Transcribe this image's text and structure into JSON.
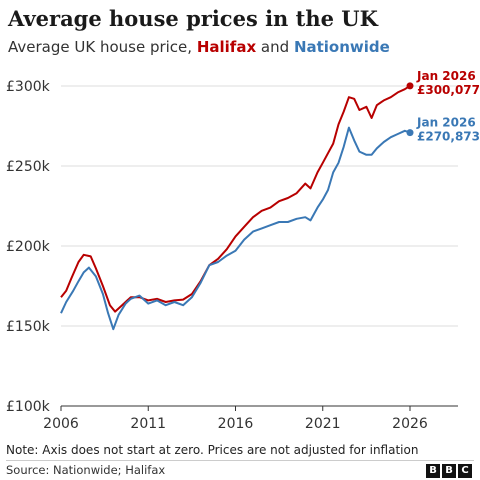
{
  "title": "Average house prices in the UK",
  "subtitle": {
    "prefix": "Average UK house price,",
    "halifax": "Halifax",
    "and": "and",
    "nationwide": "Nationwide"
  },
  "note": "Note: Axis does not start at zero. Prices are not adjusted for inflation",
  "source": "Source: Nationwide; Halifax",
  "logo": [
    "B",
    "B",
    "C"
  ],
  "colors": {
    "halifax": "#b80000",
    "nationwide": "#3a78b5",
    "grid": "#dddddd",
    "axis": "#333333"
  },
  "chart_data": {
    "type": "line",
    "title": "Average house prices in the UK",
    "ylim": [
      100000,
      310000
    ],
    "xlim": [
      2006,
      2026
    ],
    "yticks": [
      100000,
      150000,
      200000,
      250000,
      300000
    ],
    "ytick_labels": [
      "£100k",
      "£150k",
      "£200k",
      "£250k",
      "£300k"
    ],
    "xticks": [
      2006,
      2011,
      2016,
      2021,
      2026
    ],
    "xtick_labels": [
      "2006",
      "2011",
      "2016",
      "2021",
      "2026"
    ],
    "grid": true,
    "series": [
      {
        "name": "Halifax",
        "color": "#b80000",
        "end_label_date": "Jan 2026",
        "end_label_value": "£300,077",
        "points": [
          [
            2006.0,
            168000
          ],
          [
            2006.3,
            172000
          ],
          [
            2006.6,
            180000
          ],
          [
            2007.0,
            190000
          ],
          [
            2007.3,
            194500
          ],
          [
            2007.7,
            193500
          ],
          [
            2008.0,
            186000
          ],
          [
            2008.4,
            175000
          ],
          [
            2008.8,
            163000
          ],
          [
            2009.1,
            159000
          ],
          [
            2009.5,
            163000
          ],
          [
            2010.0,
            168000
          ],
          [
            2010.5,
            168000
          ],
          [
            2011.0,
            166000
          ],
          [
            2011.5,
            167000
          ],
          [
            2012.0,
            165000
          ],
          [
            2012.5,
            166000
          ],
          [
            2013.0,
            166500
          ],
          [
            2013.5,
            170000
          ],
          [
            2014.0,
            178000
          ],
          [
            2014.5,
            188000
          ],
          [
            2015.0,
            192000
          ],
          [
            2015.5,
            198000
          ],
          [
            2016.0,
            206000
          ],
          [
            2016.5,
            212000
          ],
          [
            2017.0,
            218000
          ],
          [
            2017.5,
            222000
          ],
          [
            2018.0,
            224000
          ],
          [
            2018.5,
            228000
          ],
          [
            2019.0,
            230000
          ],
          [
            2019.5,
            233000
          ],
          [
            2020.0,
            239000
          ],
          [
            2020.3,
            236000
          ],
          [
            2020.7,
            246000
          ],
          [
            2021.0,
            252000
          ],
          [
            2021.3,
            258000
          ],
          [
            2021.6,
            264000
          ],
          [
            2021.9,
            276000
          ],
          [
            2022.2,
            284000
          ],
          [
            2022.5,
            293000
          ],
          [
            2022.8,
            292000
          ],
          [
            2023.1,
            285000
          ],
          [
            2023.5,
            287000
          ],
          [
            2023.8,
            280000
          ],
          [
            2024.1,
            288000
          ],
          [
            2024.5,
            291000
          ],
          [
            2024.9,
            293000
          ],
          [
            2025.3,
            296000
          ],
          [
            2025.7,
            298000
          ],
          [
            2026.0,
            300077
          ]
        ]
      },
      {
        "name": "Nationwide",
        "color": "#3a78b5",
        "end_label_date": "Jan 2026",
        "end_label_value": "£270,873",
        "points": [
          [
            2006.0,
            158000
          ],
          [
            2006.3,
            165000
          ],
          [
            2006.7,
            172000
          ],
          [
            2007.0,
            178000
          ],
          [
            2007.3,
            183500
          ],
          [
            2007.6,
            186500
          ],
          [
            2008.0,
            181000
          ],
          [
            2008.4,
            170000
          ],
          [
            2008.7,
            158000
          ],
          [
            2009.0,
            148000
          ],
          [
            2009.3,
            157000
          ],
          [
            2009.7,
            164000
          ],
          [
            2010.0,
            167000
          ],
          [
            2010.5,
            169000
          ],
          [
            2011.0,
            164000
          ],
          [
            2011.5,
            166000
          ],
          [
            2012.0,
            163000
          ],
          [
            2012.5,
            165000
          ],
          [
            2013.0,
            163000
          ],
          [
            2013.5,
            168000
          ],
          [
            2014.0,
            177000
          ],
          [
            2014.5,
            188000
          ],
          [
            2015.0,
            190000
          ],
          [
            2015.5,
            194000
          ],
          [
            2016.0,
            197000
          ],
          [
            2016.5,
            204000
          ],
          [
            2017.0,
            209000
          ],
          [
            2017.5,
            211000
          ],
          [
            2018.0,
            213000
          ],
          [
            2018.5,
            215000
          ],
          [
            2019.0,
            215000
          ],
          [
            2019.5,
            217000
          ],
          [
            2020.0,
            218000
          ],
          [
            2020.3,
            216000
          ],
          [
            2020.7,
            224000
          ],
          [
            2021.0,
            229000
          ],
          [
            2021.3,
            235000
          ],
          [
            2021.6,
            246000
          ],
          [
            2021.9,
            252000
          ],
          [
            2022.2,
            262000
          ],
          [
            2022.5,
            274000
          ],
          [
            2022.8,
            266000
          ],
          [
            2023.1,
            259000
          ],
          [
            2023.5,
            257000
          ],
          [
            2023.8,
            257000
          ],
          [
            2024.1,
            261000
          ],
          [
            2024.5,
            265000
          ],
          [
            2024.9,
            268000
          ],
          [
            2025.3,
            270000
          ],
          [
            2025.7,
            272000
          ],
          [
            2026.0,
            270873
          ]
        ]
      }
    ]
  }
}
